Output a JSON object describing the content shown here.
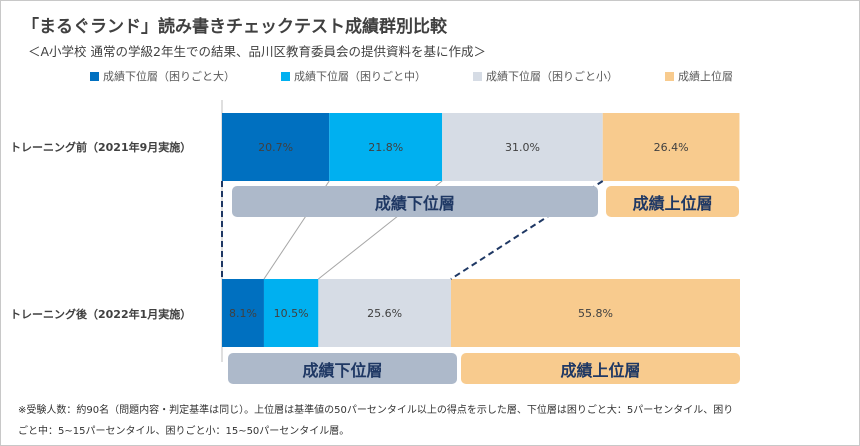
{
  "title": "「まるぐランド」読み書きチェックテスト成績群別比較",
  "subtitle": "＜A小学校 通常の学級2年生での結果、品川区教育委員会の提供資料を基に作成＞",
  "chart_data": {
    "type": "bar",
    "orientation": "horizontal-stacked-100",
    "categories": [
      "トレーニング前（2021年9月実施）",
      "トレーニング後（2022年1月実施）"
    ],
    "series": [
      {
        "name": "成績下位層（困りごと大）",
        "values": [
          20.7,
          8.1
        ],
        "labels": [
          "20.7%",
          "8.1%"
        ],
        "color": "#0070c0"
      },
      {
        "name": "成績下位層（困りごと中）",
        "values": [
          21.8,
          10.5
        ],
        "labels": [
          "21.8%",
          "10.5%"
        ],
        "color": "#00b0f0"
      },
      {
        "name": "成績下位層（困りごと小）",
        "values": [
          31.0,
          25.6
        ],
        "labels": [
          "31.0%",
          "25.6%"
        ],
        "color": "#d6dce5"
      },
      {
        "name": "成績上位層",
        "values": [
          26.4,
          55.8
        ],
        "labels": [
          "26.4%",
          "55.8%"
        ],
        "color": "#f8cb8e"
      }
    ],
    "band_labels": {
      "lower": "成績下位層",
      "upper": "成績上位層"
    },
    "band_colors": {
      "lower": "#adb9ca",
      "upper": "#f8cb8e"
    },
    "xlim": [
      0,
      100
    ],
    "legend": "top",
    "grid": false
  },
  "footnote": {
    "line1": "※受験人数：約90名（問題内容・判定基準は同じ）。上位層は基準値の50パーセンタイル以上の得点を示した層、下位層は困りごと大：5パーセンタイル、困り",
    "line2": "ごと中：5~15パーセンタイル、困りごと小：15~50パーセンタイル層。"
  }
}
